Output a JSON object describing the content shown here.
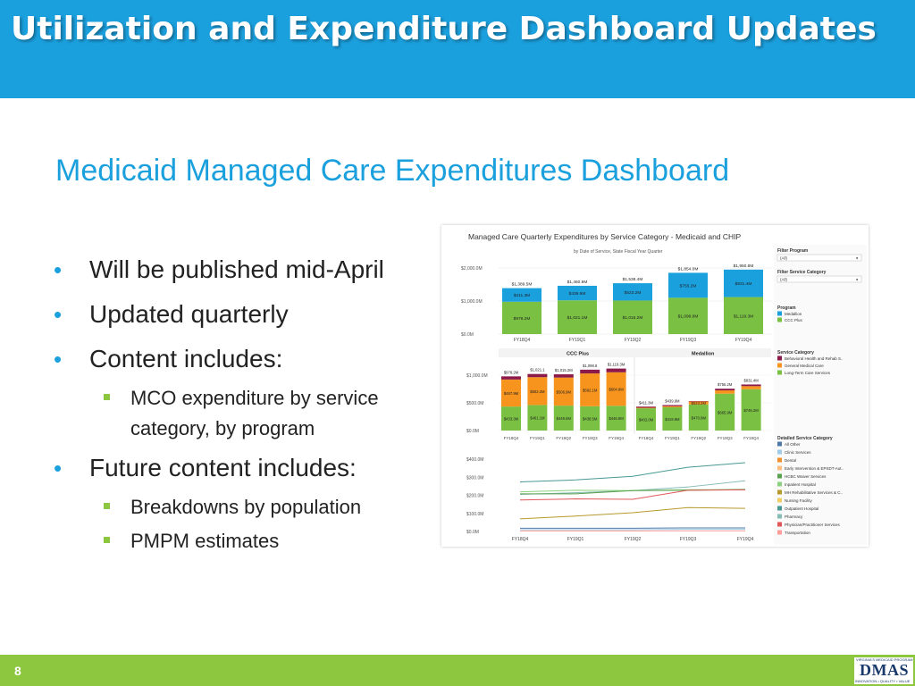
{
  "header": {
    "title": "Utilization and Expenditure Dashboard Updates"
  },
  "subtitle": "Medicaid Managed Care Expenditures Dashboard",
  "bullets": [
    {
      "text": "Will be published mid-April",
      "sub": []
    },
    {
      "text": "Updated quarterly",
      "sub": []
    },
    {
      "text": "Content includes:",
      "sub": [
        "MCO expenditure by service category, by program"
      ]
    },
    {
      "text": "Future content includes:",
      "sub": [
        "Breakdowns by population",
        "PMPM estimates"
      ]
    }
  ],
  "footer": {
    "page_number": "8"
  },
  "logo": {
    "top": "VIRGINIA'S MEDICAID PROGRAM",
    "main": "DMAS",
    "bottom": "INNOVATION • QUALITY • VALUE"
  },
  "colors": {
    "header": "#1ba0de",
    "footer": "#8dc63f",
    "medallion": "#1ba0de",
    "ccc_plus": "#7ac143",
    "behavioral": "#8b1a4a",
    "general_medical": "#f7941d",
    "ltc": "#7ac143"
  },
  "dashboard": {
    "title": "Managed Care Quarterly Expenditures by Service Category - Medicaid and CHIP",
    "subtitle": "by Date of Service, State Fiscal Year Quarter",
    "top_chart": {
      "y_ticks": [
        "$2,000.0M",
        "$1,000.0M",
        "$0.0M"
      ],
      "categories": [
        "FY18Q4",
        "FY19Q1",
        "FY19Q2",
        "FY19Q3",
        "FY19Q4"
      ],
      "totals": [
        "$1,389.5M",
        "$1,460.9M",
        "$1,538.4M",
        "$1,854.0M",
        "$1,950.8M"
      ],
      "medallion": [
        "$411.3M",
        "$439.9M",
        "$523.2M",
        "$755.2M",
        "$831.4M"
      ],
      "ccc_plus": [
        "$978.2M",
        "$1,021.1M",
        "$1,015.2M",
        "$1,098.8M",
        "$1,119.3M"
      ]
    },
    "mid_chart": {
      "panels": [
        "CCC Plus",
        "Medallion"
      ],
      "y_ticks": [
        "$1,000.0M",
        "$500.0M",
        "$0.0M"
      ],
      "categories": [
        "FY18Q4",
        "FY19Q1",
        "FY19Q2",
        "FY19Q3",
        "FY19Q4",
        "FY18Q4",
        "FY19Q1",
        "FY19Q2",
        "FY19Q3",
        "FY19Q4"
      ],
      "totals": [
        "$978.2M",
        "$1,021.1",
        "$1,015.2M",
        "$1,098.8",
        "$1,119.3M",
        "",
        "",
        "",
        "$755.2M",
        "$831.4M"
      ],
      "general_medical": [
        "$487.9M",
        "$502.2M",
        "$506.9M",
        "$592.1M",
        "$604.9M",
        "",
        "",
        "$523.2M",
        "",
        ""
      ],
      "ltc": [
        "$433.3M",
        "$461.1M",
        "$449.6M",
        "$438.5M",
        "$446.8M",
        "$402.0M",
        "$419.9M",
        "$470.8M",
        "$665.9M",
        "$745.2M"
      ],
      "medallion_top": [
        "",
        "",
        "",
        "",
        "",
        "$411.3M",
        "$439.9M",
        "",
        "",
        ""
      ]
    },
    "line_chart": {
      "y_ticks": [
        "$400.0M",
        "$300.0M",
        "$200.0M",
        "$100.0M",
        "$0.0M"
      ],
      "categories": [
        "FY18Q4",
        "FY19Q1",
        "FY19Q2",
        "FY19Q3",
        "FY19Q4"
      ]
    },
    "filters": [
      {
        "label": "Filter Program",
        "value": "(All)"
      },
      {
        "label": "Filter Service Category",
        "value": "(All)"
      }
    ],
    "program_legend": {
      "title": "Program",
      "items": [
        "Medallion",
        "CCC Plus"
      ]
    },
    "service_legend": {
      "title": "Service Category",
      "items": [
        "Behavioral Health and Rehab S..",
        "General Medical Care",
        "Long-Term Care Services"
      ]
    },
    "detailed_legend": {
      "title": "Detailed Service Category",
      "items": [
        "All Other",
        "Clinic Services",
        "Dental",
        "Early Intervention & EPSDT-Aut..",
        "HCBC Waiver Services",
        "Inpatient Hospital",
        "MH Rehabilitative Services & C..",
        "Nursing Facility",
        "Outpatient Hospital",
        "Pharmacy",
        "Physician/Practitioner Services",
        "Transportation"
      ],
      "colors": [
        "#4e79a7",
        "#a0cbe8",
        "#f28e2b",
        "#ffbe7d",
        "#59a14f",
        "#8cd17d",
        "#b6992d",
        "#f1ce63",
        "#499894",
        "#86bcb6",
        "#e15759",
        "#ff9d9a"
      ]
    }
  }
}
